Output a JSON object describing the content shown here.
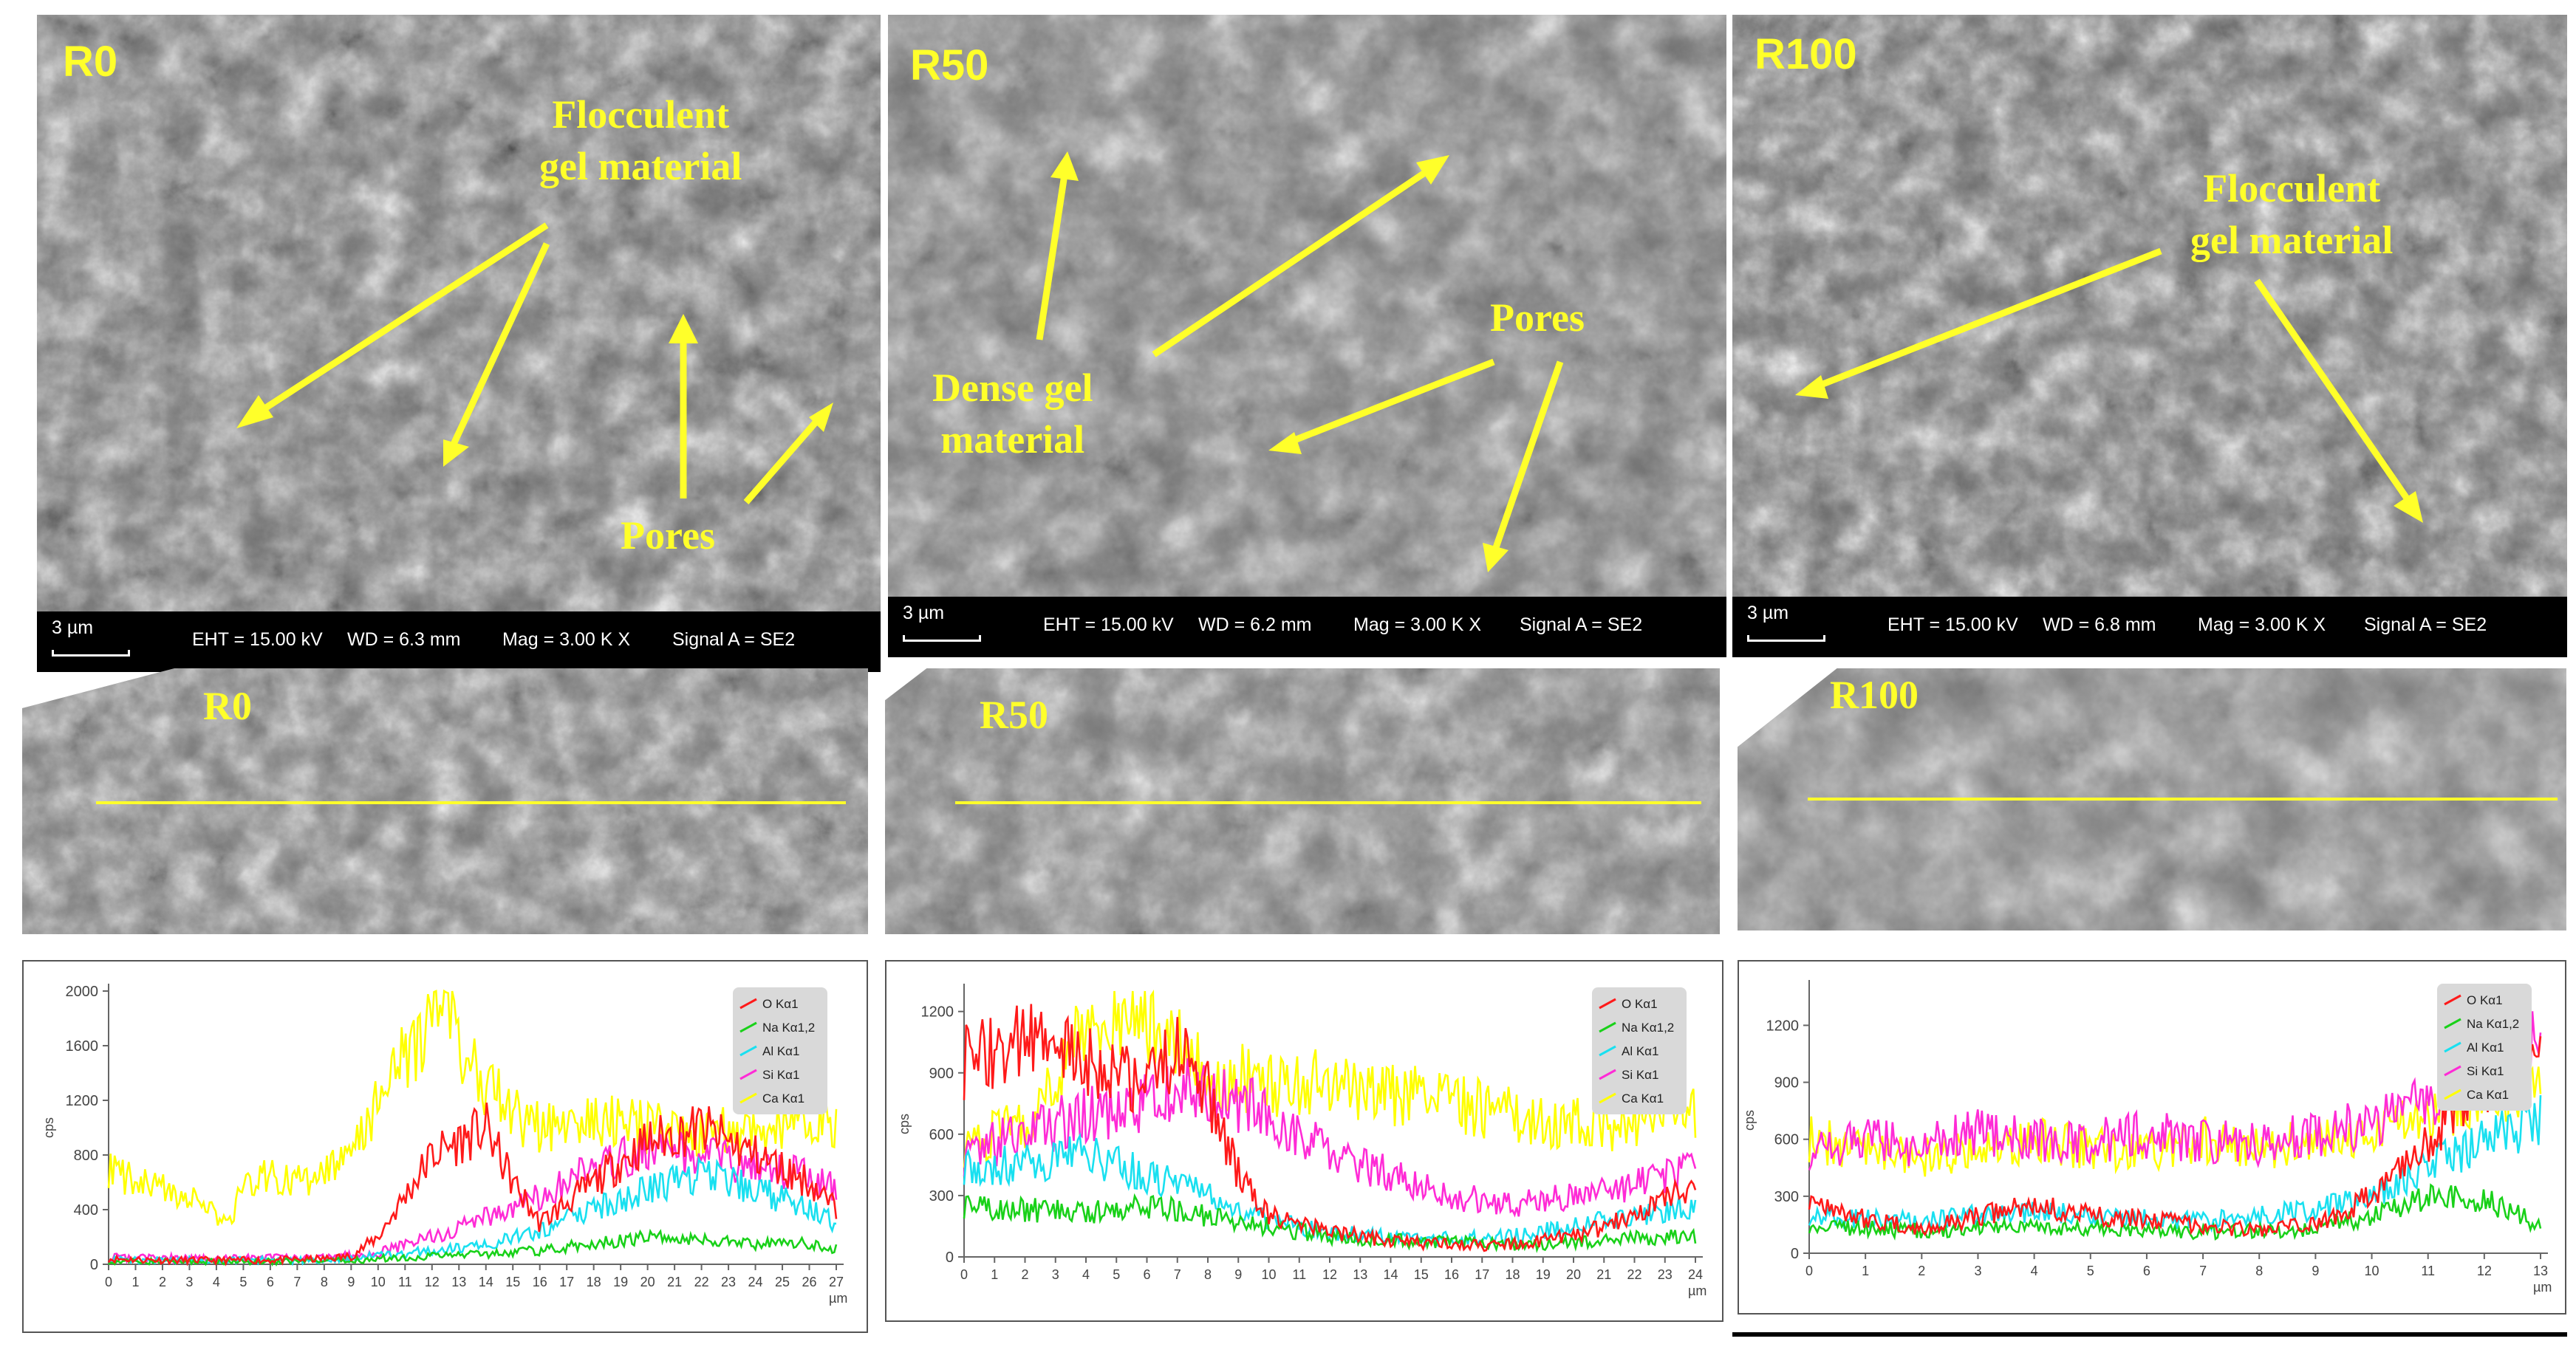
{
  "sem_panels": [
    {
      "id": "R0",
      "label": "R0",
      "scale": "3 µm",
      "eht": "EHT = 15.00 kV",
      "wd": "WD = 6.3 mm",
      "mag": "Mag =   3.00 K X",
      "signal": "Signal A = SE2",
      "annotations": [
        {
          "text": "Flocculent\ngel material"
        },
        {
          "text": "Pores"
        }
      ]
    },
    {
      "id": "R50",
      "label": "R50",
      "scale": "3 µm",
      "eht": "EHT = 15.00 kV",
      "wd": "WD = 6.2 mm",
      "mag": "Mag =   3.00 K X",
      "signal": "Signal A = SE2",
      "annotations": [
        {
          "text": "Dense gel\nmaterial"
        },
        {
          "text": "Pores"
        }
      ]
    },
    {
      "id": "R100",
      "label": "R100",
      "scale": "3 µm",
      "eht": "EHT = 15.00 kV",
      "wd": "WD = 6.8 mm",
      "mag": "Mag =   3.00 K X",
      "signal": "Signal A = SE2",
      "annotations": [
        {
          "text": "Flocculent\ngel material"
        }
      ]
    }
  ],
  "strips": [
    {
      "label": "R0"
    },
    {
      "label": "R50"
    },
    {
      "label": "R100"
    }
  ],
  "legend": [
    {
      "name": "O Kα1",
      "color": "#ff1a1a"
    },
    {
      "name": "Na Kα1,2",
      "color": "#19d119"
    },
    {
      "name": "Al Kα1",
      "color": "#19e0f0"
    },
    {
      "name": "Si Kα1",
      "color": "#ff2bd6"
    },
    {
      "name": "Ca Kα1",
      "color": "#ffff00"
    }
  ],
  "chart_data": [
    {
      "type": "line",
      "ylabel": "cps",
      "xlabel": "µm",
      "xlim": [
        0,
        27
      ],
      "ylim": [
        0,
        2000
      ],
      "yticks": [
        0,
        400,
        800,
        1200,
        1600,
        2000
      ],
      "xticks": [
        0,
        1,
        2,
        3,
        4,
        5,
        6,
        7,
        8,
        9,
        10,
        11,
        12,
        13,
        14,
        15,
        16,
        17,
        18,
        19,
        20,
        21,
        22,
        23,
        24,
        25,
        26,
        27
      ],
      "series": [
        {
          "name": "O Kα1",
          "x": [
            0,
            2,
            4,
            6,
            8,
            9,
            10,
            11,
            12,
            13,
            14,
            15,
            16,
            18,
            20,
            22,
            24,
            26,
            27
          ],
          "values": [
            40,
            30,
            30,
            30,
            40,
            60,
            200,
            500,
            800,
            900,
            1000,
            600,
            300,
            600,
            900,
            1000,
            800,
            600,
            400
          ]
        },
        {
          "name": "Na Kα1,2",
          "x": [
            0,
            4,
            8,
            10,
            12,
            14,
            16,
            18,
            20,
            22,
            24,
            26,
            27
          ],
          "values": [
            20,
            20,
            20,
            40,
            60,
            80,
            100,
            150,
            200,
            180,
            150,
            150,
            120
          ]
        },
        {
          "name": "Al Kα1",
          "x": [
            0,
            4,
            8,
            10,
            12,
            14,
            16,
            18,
            20,
            22,
            24,
            26,
            27
          ],
          "values": [
            30,
            30,
            30,
            60,
            100,
            150,
            250,
            400,
            550,
            650,
            550,
            400,
            300
          ]
        },
        {
          "name": "Si Kα1",
          "x": [
            0,
            4,
            8,
            10,
            12,
            14,
            16,
            18,
            20,
            22,
            24,
            26,
            27
          ],
          "values": [
            50,
            40,
            50,
            80,
            200,
            350,
            500,
            700,
            850,
            800,
            700,
            650,
            550
          ]
        },
        {
          "name": "Ca Kα1",
          "x": [
            0,
            1,
            2,
            3,
            4,
            4.5,
            5,
            6,
            7,
            8,
            9,
            10,
            11,
            12,
            12.5,
            13,
            14,
            15,
            16,
            18,
            20,
            22,
            24,
            26,
            27
          ],
          "values": [
            700,
            600,
            550,
            500,
            350,
            300,
            600,
            650,
            600,
            650,
            800,
            1200,
            1500,
            1800,
            1950,
            1600,
            1300,
            1100,
            1000,
            1050,
            1000,
            950,
            1000,
            1050,
            1000
          ]
        }
      ]
    },
    {
      "type": "line",
      "ylabel": "cps",
      "xlabel": "µm",
      "xlim": [
        0,
        24
      ],
      "ylim": [
        0,
        1300
      ],
      "yticks": [
        0,
        300,
        600,
        900,
        1200
      ],
      "xticks": [
        0,
        1,
        2,
        3,
        4,
        5,
        6,
        7,
        8,
        9,
        10,
        11,
        12,
        13,
        14,
        15,
        16,
        17,
        18,
        19,
        20,
        21,
        22,
        23,
        24
      ],
      "series": [
        {
          "name": "O Kα1",
          "x": [
            0,
            1,
            2,
            3,
            4,
            5,
            6,
            7,
            8,
            9,
            10,
            12,
            14,
            16,
            18,
            20,
            22,
            23,
            24
          ],
          "values": [
            950,
            1000,
            1050,
            1000,
            950,
            900,
            850,
            1000,
            800,
            400,
            200,
            120,
            80,
            60,
            60,
            100,
            200,
            300,
            350
          ]
        },
        {
          "name": "Na Kα1,2",
          "x": [
            0,
            2,
            4,
            6,
            8,
            10,
            12,
            14,
            16,
            18,
            20,
            22,
            24
          ],
          "values": [
            250,
            230,
            220,
            250,
            200,
            150,
            100,
            80,
            70,
            60,
            70,
            90,
            100
          ]
        },
        {
          "name": "Al Kα1",
          "x": [
            0,
            2,
            4,
            6,
            8,
            10,
            12,
            14,
            16,
            18,
            20,
            22,
            24
          ],
          "values": [
            450,
            450,
            500,
            400,
            300,
            180,
            120,
            100,
            90,
            100,
            150,
            200,
            250
          ]
        },
        {
          "name": "Si Kα1",
          "x": [
            0,
            2,
            4,
            6,
            7,
            8,
            10,
            12,
            14,
            16,
            18,
            20,
            22,
            24
          ],
          "values": [
            500,
            600,
            700,
            750,
            850,
            800,
            700,
            500,
            400,
            300,
            250,
            300,
            350,
            450
          ]
        },
        {
          "name": "Ca Kα1",
          "x": [
            0,
            2,
            3,
            4,
            5,
            6,
            8,
            10,
            12,
            14,
            16,
            18,
            20,
            22,
            24
          ],
          "values": [
            550,
            650,
            900,
            1100,
            1200,
            1150,
            900,
            850,
            850,
            800,
            750,
            700,
            650,
            650,
            700
          ]
        }
      ]
    },
    {
      "type": "line",
      "ylabel": "cps",
      "xlabel": "µm",
      "xlim": [
        0,
        13
      ],
      "ylim": [
        0,
        1400
      ],
      "yticks": [
        0,
        300,
        600,
        900,
        1200
      ],
      "xticks": [
        0,
        1,
        2,
        3,
        4,
        5,
        6,
        7,
        8,
        9,
        10,
        11,
        12,
        13
      ],
      "series": [
        {
          "name": "O Kα1",
          "x": [
            0,
            1,
            2,
            3,
            4,
            5,
            6,
            7,
            8,
            9,
            10,
            11,
            12,
            13
          ],
          "values": [
            300,
            180,
            120,
            200,
            250,
            200,
            180,
            150,
            120,
            150,
            300,
            600,
            900,
            1100
          ]
        },
        {
          "name": "Na Kα1,2",
          "x": [
            0,
            1,
            2,
            3,
            4,
            5,
            6,
            7,
            8,
            9,
            10,
            11,
            12,
            13
          ],
          "values": [
            150,
            130,
            120,
            130,
            140,
            130,
            120,
            110,
            120,
            130,
            200,
            300,
            280,
            150
          ]
        },
        {
          "name": "Al Kα1",
          "x": [
            0,
            1,
            2,
            3,
            4,
            5,
            6,
            7,
            8,
            9,
            10,
            11,
            12,
            13
          ],
          "values": [
            200,
            180,
            170,
            200,
            220,
            200,
            180,
            170,
            200,
            230,
            300,
            450,
            600,
            700
          ]
        },
        {
          "name": "Si Kα1",
          "x": [
            0,
            1,
            2,
            3,
            4,
            5,
            6,
            7,
            8,
            9,
            10,
            11,
            12,
            13
          ],
          "values": [
            550,
            600,
            550,
            650,
            600,
            600,
            620,
            600,
            580,
            620,
            700,
            800,
            1000,
            1100
          ]
        },
        {
          "name": "Ca Kα1",
          "x": [
            0,
            1,
            2,
            3,
            4,
            5,
            6,
            7,
            8,
            9,
            10,
            11,
            12,
            13
          ],
          "values": [
            600,
            550,
            500,
            550,
            600,
            550,
            550,
            600,
            550,
            600,
            650,
            700,
            800,
            900
          ]
        }
      ]
    }
  ]
}
